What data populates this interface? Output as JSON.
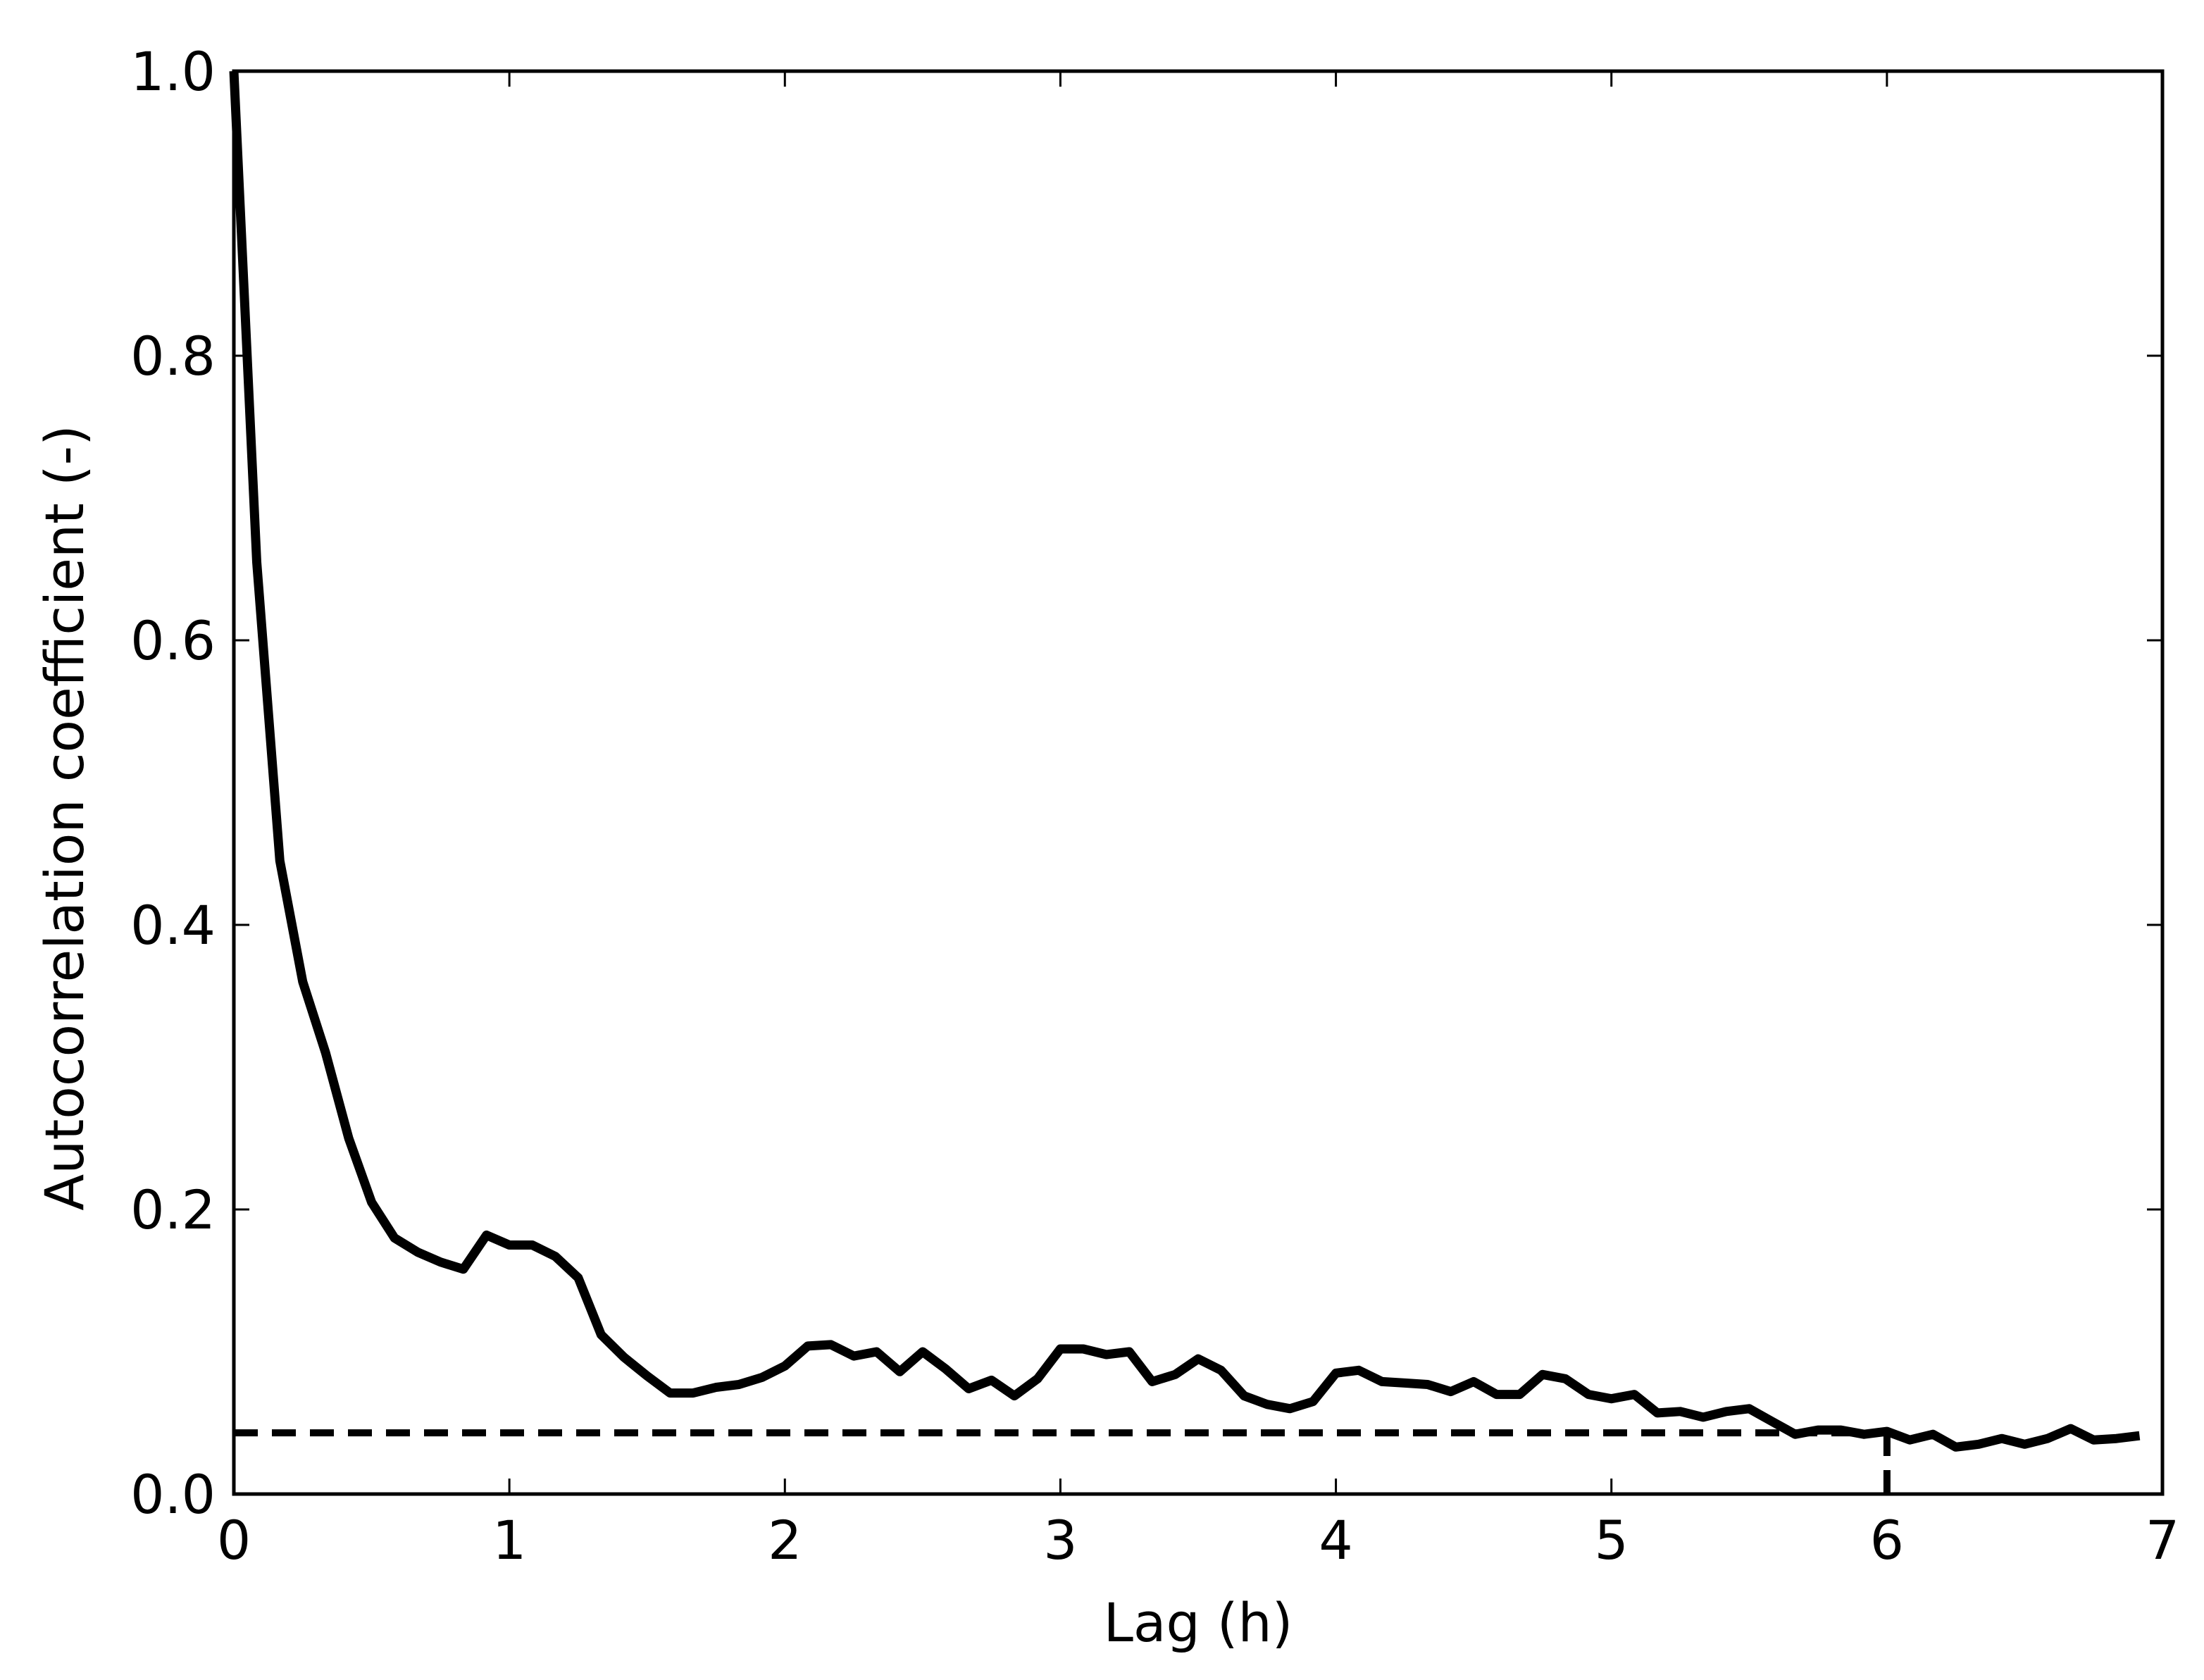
{
  "chart_data": {
    "type": "line",
    "title": "",
    "xlabel": "Lag (h)",
    "ylabel": "Autocorrelation coefficient (-)",
    "xlim": [
      0,
      7
    ],
    "ylim": [
      0,
      1.0
    ],
    "xticks": [
      0,
      1,
      2,
      3,
      4,
      5,
      6,
      7
    ],
    "xtick_labels": [
      "0",
      "1",
      "2",
      "3",
      "4",
      "5",
      "6",
      "7"
    ],
    "yticks": [
      0,
      0.2,
      0.4,
      0.6,
      0.8,
      1.0
    ],
    "ytick_labels": [
      "0.0",
      "0.2",
      "0.4",
      "0.6",
      "0.8",
      "1.0"
    ],
    "grid": false,
    "line_color": "#000000",
    "series": [
      {
        "style": "solid",
        "x": [
          0,
          0.083,
          0.167,
          0.25,
          0.333,
          0.417,
          0.5,
          0.583,
          0.667,
          0.75,
          0.833,
          0.917,
          1.0,
          1.083,
          1.167,
          1.25,
          1.333,
          1.417,
          1.5,
          1.583,
          1.667,
          1.75,
          1.833,
          1.917,
          2.0,
          2.083,
          2.167,
          2.25,
          2.333,
          2.417,
          2.5,
          2.583,
          2.667,
          2.75,
          2.833,
          2.917,
          3.0,
          3.083,
          3.167,
          3.25,
          3.333,
          3.417,
          3.5,
          3.583,
          3.667,
          3.75,
          3.833,
          3.917,
          4.0,
          4.083,
          4.167,
          4.25,
          4.333,
          4.417,
          4.5,
          4.583,
          4.667,
          4.75,
          4.833,
          4.917,
          5.0,
          5.083,
          5.167,
          5.25,
          5.333,
          5.417,
          5.5,
          5.583,
          5.667,
          5.75,
          5.833,
          5.917,
          6.0,
          6.083,
          6.167,
          6.25,
          6.333,
          6.417,
          6.5,
          6.583,
          6.667,
          6.75,
          6.833,
          6.917
        ],
        "values": [
          1.0,
          0.655,
          0.445,
          0.36,
          0.31,
          0.25,
          0.205,
          0.18,
          0.17,
          0.163,
          0.158,
          0.182,
          0.175,
          0.175,
          0.167,
          0.152,
          0.112,
          0.096,
          0.083,
          0.071,
          0.071,
          0.075,
          0.077,
          0.082,
          0.09,
          0.104,
          0.105,
          0.097,
          0.1,
          0.086,
          0.1,
          0.088,
          0.074,
          0.08,
          0.069,
          0.081,
          0.102,
          0.102,
          0.098,
          0.1,
          0.079,
          0.084,
          0.095,
          0.087,
          0.069,
          0.063,
          0.06,
          0.065,
          0.085,
          0.087,
          0.079,
          0.078,
          0.077,
          0.072,
          0.079,
          0.07,
          0.07,
          0.084,
          0.081,
          0.07,
          0.067,
          0.07,
          0.057,
          0.058,
          0.054,
          0.058,
          0.06,
          0.051,
          0.042,
          0.045,
          0.045,
          0.042,
          0.044,
          0.038,
          0.042,
          0.033,
          0.035,
          0.039,
          0.035,
          0.039,
          0.046,
          0.038,
          0.039,
          0.041
        ]
      },
      {
        "style": "dashed",
        "x": [
          0,
          6
        ],
        "values": [
          0.043,
          0.043
        ]
      },
      {
        "style": "dashed",
        "x": [
          6,
          6
        ],
        "values": [
          0,
          0.043
        ]
      }
    ]
  }
}
